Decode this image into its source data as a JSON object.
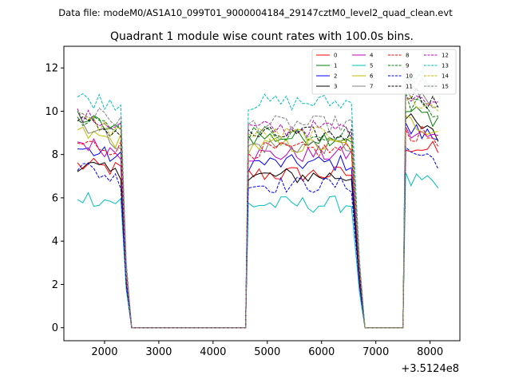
{
  "chart_data": {
    "type": "line",
    "suptitle": "Data file: modeM0/AS1A10_099T01_9000004184_29147cztM0_level2_quad_clean.evt",
    "title": "Quadrant 1 module wise count rates with 100.0s bins.",
    "xlabel": "",
    "ylabel": "",
    "x_offset_label": "+3.5124e8",
    "xlim": [
      1250,
      8550
    ],
    "ylim": [
      -0.6,
      13.0
    ],
    "xticks": [
      2000,
      3000,
      4000,
      5000,
      6000,
      7000,
      8000
    ],
    "yticks": [
      0,
      2,
      4,
      6,
      8,
      10,
      12
    ],
    "legend_position": "upper-right",
    "segments": [
      [
        1500,
        2300
      ],
      [
        4650,
        6600
      ],
      [
        7550,
        8200
      ]
    ],
    "gap_ranges": [
      [
        2400,
        2500,
        4600
      ],
      [
        6700,
        6800,
        7500
      ]
    ],
    "series": [
      {
        "name": "0",
        "color": "#ff0000",
        "dash": false,
        "base": [
          7.5,
          7.3,
          7.1,
          8.5
        ]
      },
      {
        "name": "1",
        "color": "#008000",
        "dash": false,
        "base": [
          9.8,
          9.0,
          8.8,
          10.0
        ]
      },
      {
        "name": "2",
        "color": "#0000ff",
        "dash": false,
        "base": [
          8.3,
          7.8,
          7.6,
          9.2
        ]
      },
      {
        "name": "3",
        "color": "#000000",
        "dash": false,
        "base": [
          7.6,
          7.0,
          7.0,
          9.6
        ]
      },
      {
        "name": "4",
        "color": "#bf00bf",
        "dash": false,
        "base": [
          8.6,
          8.1,
          8.0,
          9.0
        ]
      },
      {
        "name": "5",
        "color": "#00bfbf",
        "dash": false,
        "base": [
          6.1,
          5.8,
          5.7,
          6.8
        ]
      },
      {
        "name": "6",
        "color": "#bfbf00",
        "dash": false,
        "base": [
          9.0,
          8.6,
          8.4,
          9.5
        ]
      },
      {
        "name": "7",
        "color": "#808080",
        "dash": false,
        "base": [
          9.6,
          8.5,
          8.4,
          10.8
        ]
      },
      {
        "name": "8",
        "color": "#ff0000",
        "dash": true,
        "base": [
          8.5,
          8.3,
          8.2,
          9.0
        ]
      },
      {
        "name": "9",
        "color": "#008000",
        "dash": true,
        "base": [
          9.4,
          9.3,
          9.0,
          10.5
        ]
      },
      {
        "name": "10",
        "color": "#0000ff",
        "dash": true,
        "base": [
          7.5,
          6.8,
          6.6,
          8.2
        ]
      },
      {
        "name": "11",
        "color": "#000000",
        "dash": true,
        "base": [
          9.5,
          9.0,
          8.9,
          11.0
        ]
      },
      {
        "name": "12",
        "color": "#bf00bf",
        "dash": true,
        "base": [
          9.8,
          9.3,
          9.2,
          11.0
        ]
      },
      {
        "name": "13",
        "color": "#00bfbf",
        "dash": true,
        "base": [
          10.6,
          10.4,
          10.4,
          11.8
        ]
      },
      {
        "name": "14",
        "color": "#bfbf00",
        "dash": true,
        "base": [
          9.7,
          9.0,
          8.9,
          10.6
        ]
      },
      {
        "name": "15",
        "color": "#808080",
        "dash": true,
        "base": [
          10.0,
          9.6,
          9.4,
          11.4
        ]
      }
    ]
  }
}
